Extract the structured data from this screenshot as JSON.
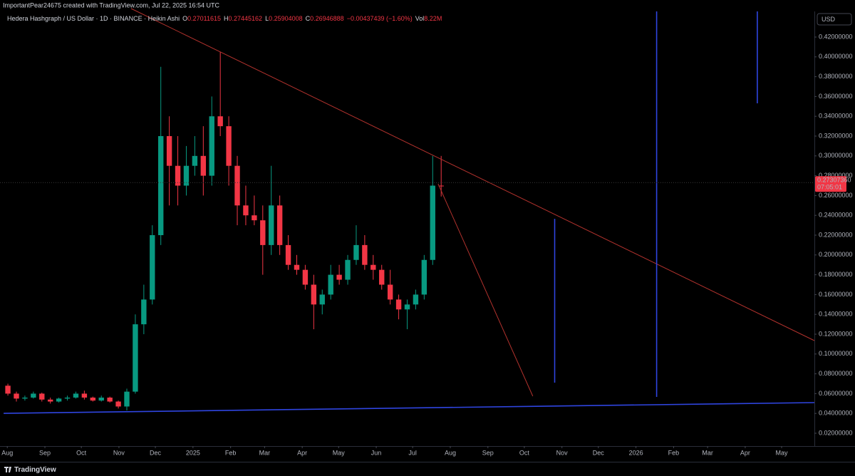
{
  "header": {
    "caption": "ImportantPear24675 created with TradingView.com, Jul 22, 2025 16:54 UTC"
  },
  "footer": {
    "brand": "TradingView"
  },
  "chart_data": {
    "type": "candlestick",
    "legend": {
      "title": "Hedera Hashgraph / US Dollar · 1D · BINANCE · Heikin Ashi",
      "items": [
        {
          "key": "O",
          "text": "0.27011615"
        },
        {
          "key": "H",
          "text": "0.27445162"
        },
        {
          "key": "L",
          "text": "0.25904008"
        },
        {
          "key": "C",
          "text": "0.26946888"
        }
      ],
      "change": "−0.00437439 (−1.60%)",
      "volume_key": "Vol",
      "volume": "8.22M"
    },
    "currency": "USD",
    "up_color": "#089981",
    "down_color": "#f23645",
    "x": [
      "2024-07-29",
      "2024-08-05",
      "2024-08-12",
      "2024-08-19",
      "2024-08-26",
      "2024-09-02",
      "2024-09-09",
      "2024-09-16",
      "2024-09-23",
      "2024-09-30",
      "2024-10-07",
      "2024-10-14",
      "2024-10-21",
      "2024-10-28",
      "2024-11-04",
      "2024-11-11",
      "2024-11-18",
      "2024-11-25",
      "2024-12-02",
      "2024-12-09",
      "2024-12-16",
      "2024-12-23",
      "2024-12-30",
      "2025-01-06",
      "2025-01-13",
      "2025-01-20",
      "2025-01-27",
      "2025-02-03",
      "2025-02-10",
      "2025-02-17",
      "2025-02-24",
      "2025-03-03",
      "2025-03-10",
      "2025-03-17",
      "2025-03-24",
      "2025-03-31",
      "2025-04-07",
      "2025-04-14",
      "2025-04-21",
      "2025-04-28",
      "2025-05-05",
      "2025-05-12",
      "2025-05-19",
      "2025-05-26",
      "2025-06-02",
      "2025-06-09",
      "2025-06-16",
      "2025-06-23",
      "2025-06-30",
      "2025-07-07",
      "2025-07-14",
      "2025-07-21"
    ],
    "open": [
      0.068,
      0.06,
      0.055,
      0.056,
      0.06,
      0.054,
      0.052,
      0.055,
      0.056,
      0.06,
      0.056,
      0.053,
      0.056,
      0.052,
      0.047,
      0.062,
      0.13,
      0.155,
      0.22,
      0.32,
      0.29,
      0.27,
      0.29,
      0.3,
      0.28,
      0.34,
      0.33,
      0.29,
      0.25,
      0.24,
      0.235,
      0.21,
      0.25,
      0.21,
      0.19,
      0.185,
      0.17,
      0.15,
      0.16,
      0.18,
      0.175,
      0.195,
      0.21,
      0.19,
      0.185,
      0.17,
      0.155,
      0.145,
      0.15,
      0.16,
      0.195,
      0.27
    ],
    "high": [
      0.07,
      0.062,
      0.058,
      0.062,
      0.061,
      0.056,
      0.056,
      0.058,
      0.062,
      0.063,
      0.057,
      0.058,
      0.057,
      0.053,
      0.065,
      0.14,
      0.17,
      0.23,
      0.39,
      0.34,
      0.32,
      0.31,
      0.32,
      0.33,
      0.36,
      0.405,
      0.34,
      0.3,
      0.27,
      0.26,
      0.25,
      0.29,
      0.26,
      0.22,
      0.2,
      0.19,
      0.18,
      0.165,
      0.19,
      0.19,
      0.2,
      0.23,
      0.22,
      0.2,
      0.19,
      0.185,
      0.16,
      0.155,
      0.165,
      0.2,
      0.3,
      0.3
    ],
    "low": [
      0.058,
      0.052,
      0.053,
      0.055,
      0.052,
      0.05,
      0.051,
      0.053,
      0.055,
      0.054,
      0.052,
      0.052,
      0.051,
      0.045,
      0.043,
      0.06,
      0.12,
      0.15,
      0.21,
      0.25,
      0.25,
      0.26,
      0.28,
      0.26,
      0.27,
      0.32,
      0.27,
      0.23,
      0.23,
      0.23,
      0.18,
      0.2,
      0.2,
      0.185,
      0.18,
      0.165,
      0.125,
      0.14,
      0.155,
      0.17,
      0.17,
      0.19,
      0.185,
      0.175,
      0.165,
      0.15,
      0.135,
      0.125,
      0.145,
      0.155,
      0.19,
      0.259
    ],
    "close": [
      0.06,
      0.055,
      0.056,
      0.06,
      0.054,
      0.052,
      0.055,
      0.056,
      0.06,
      0.056,
      0.053,
      0.056,
      0.052,
      0.047,
      0.062,
      0.13,
      0.155,
      0.22,
      0.32,
      0.29,
      0.27,
      0.29,
      0.3,
      0.28,
      0.34,
      0.33,
      0.29,
      0.25,
      0.24,
      0.235,
      0.21,
      0.25,
      0.21,
      0.19,
      0.185,
      0.17,
      0.15,
      0.16,
      0.18,
      0.175,
      0.195,
      0.21,
      0.19,
      0.185,
      0.17,
      0.155,
      0.145,
      0.15,
      0.16,
      0.195,
      0.27,
      0.2695
    ],
    "last_price": {
      "value": 0.2730736,
      "label": "0.27307360"
    },
    "countdown": "07:05:01",
    "xlim": [
      "2024-07-26",
      "2026-05-28"
    ],
    "xticks": [
      {
        "value": "2024-08-01",
        "label": "Aug"
      },
      {
        "value": "2024-09-01",
        "label": "Sep"
      },
      {
        "value": "2024-10-01",
        "label": "Oct"
      },
      {
        "value": "2024-11-01",
        "label": "Nov"
      },
      {
        "value": "2024-12-01",
        "label": "Dec"
      },
      {
        "value": "2025-01-01",
        "label": "2025"
      },
      {
        "value": "2025-02-01",
        "label": "Feb"
      },
      {
        "value": "2025-03-01",
        "label": "Mar"
      },
      {
        "value": "2025-04-01",
        "label": "Apr"
      },
      {
        "value": "2025-05-01",
        "label": "May"
      },
      {
        "value": "2025-06-01",
        "label": "Jun"
      },
      {
        "value": "2025-07-01",
        "label": "Jul"
      },
      {
        "value": "2025-08-01",
        "label": "Aug"
      },
      {
        "value": "2025-09-01",
        "label": "Sep"
      },
      {
        "value": "2025-10-01",
        "label": "Oct"
      },
      {
        "value": "2025-11-01",
        "label": "Nov"
      },
      {
        "value": "2025-12-01",
        "label": "Dec"
      },
      {
        "value": "2026-01-01",
        "label": "2026"
      },
      {
        "value": "2026-02-01",
        "label": "Feb"
      },
      {
        "value": "2026-03-01",
        "label": "Mar"
      },
      {
        "value": "2026-04-01",
        "label": "Apr"
      },
      {
        "value": "2026-05-01",
        "label": "May"
      }
    ],
    "ylim": [
      0.00705,
      0.4459
    ],
    "yticks": [
      {
        "value": 0.02,
        "label": "0.02000000"
      },
      {
        "value": 0.04,
        "label": "0.04000000"
      },
      {
        "value": 0.06,
        "label": "0.06000000"
      },
      {
        "value": 0.08,
        "label": "0.08000000"
      },
      {
        "value": 0.1,
        "label": "0.10000000"
      },
      {
        "value": 0.12,
        "label": "0.12000000"
      },
      {
        "value": 0.14,
        "label": "0.14000000"
      },
      {
        "value": 0.16,
        "label": "0.16000000"
      },
      {
        "value": 0.18,
        "label": "0.18000000"
      },
      {
        "value": 0.2,
        "label": "0.20000000"
      },
      {
        "value": 0.22,
        "label": "0.22000000"
      },
      {
        "value": 0.24,
        "label": "0.24000000"
      },
      {
        "value": 0.26,
        "label": "0.26000000"
      },
      {
        "value": 0.28,
        "label": "0.28000000"
      },
      {
        "value": 0.3,
        "label": "0.30000000"
      },
      {
        "value": 0.32,
        "label": "0.32000000"
      },
      {
        "value": 0.34,
        "label": "0.34000000"
      },
      {
        "value": 0.36,
        "label": "0.36000000"
      },
      {
        "value": 0.38,
        "label": "0.38000000"
      },
      {
        "value": 0.4,
        "label": "0.40000000"
      },
      {
        "value": 0.42,
        "label": "0.42000000"
      }
    ],
    "grid": false,
    "drawings": [
      {
        "color": "#b2322d",
        "x": [
          "2024-11-11",
          "2026-05-28"
        ],
        "y": [
          0.4488,
          0.1135
        ]
      },
      {
        "color": "#b2322d",
        "x": [
          "2025-07-22",
          "2025-10-08"
        ],
        "y": [
          0.2718,
          0.0574
        ]
      },
      {
        "color": "#2f45e0",
        "x": [
          "2024-07-29",
          "2026-05-28"
        ],
        "y": [
          0.0401,
          0.0509
        ]
      },
      {
        "color": "#2f45e0",
        "x": [
          "2025-10-26",
          "2025-10-26"
        ],
        "y": [
          0.2365,
          0.0711
        ]
      },
      {
        "color": "#2f45e0",
        "x": [
          "2026-01-18",
          "2026-01-18"
        ],
        "y": [
          0.4459,
          0.0567
        ]
      },
      {
        "color": "#2f45e0",
        "x": [
          "2026-04-11",
          "2026-04-11"
        ],
        "y": [
          0.4459,
          0.3531
        ]
      }
    ]
  }
}
